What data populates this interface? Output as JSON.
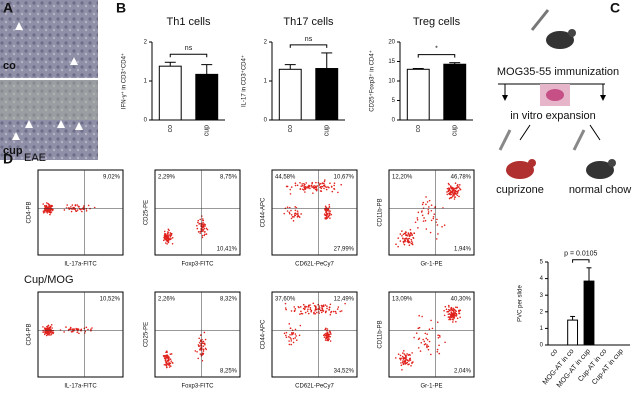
{
  "panel_labels": [
    "A",
    "B",
    "C",
    "D"
  ],
  "panel_a": {
    "labels": [
      "co",
      "cup"
    ]
  },
  "chart_data": [
    {
      "type": "bar",
      "title": "Th1 cells",
      "y_label": "IFN-γ⁺ in CD3⁺CD4⁺",
      "categories": [
        "co",
        "cup"
      ],
      "values": [
        1.38,
        1.17
      ],
      "errors": [
        0.1,
        0.25
      ],
      "colors": [
        "#ffffff",
        "#000000"
      ],
      "ylim": [
        0,
        2
      ],
      "yticks": [
        0,
        1,
        2
      ],
      "annotation": "ns"
    },
    {
      "type": "bar",
      "title": "Th17 cells",
      "y_label": "IL-17 in CD3⁺CD4⁺",
      "categories": [
        "co",
        "cup"
      ],
      "values": [
        1.3,
        1.32
      ],
      "errors": [
        0.12,
        0.4
      ],
      "colors": [
        "#ffffff",
        "#000000"
      ],
      "ylim": [
        0,
        2
      ],
      "yticks": [
        0,
        1,
        2
      ],
      "annotation": "ns"
    },
    {
      "type": "bar",
      "title": "Treg cells",
      "y_label": "CD25⁺Foxp3⁺ in CD4⁺",
      "categories": [
        "co",
        "cup"
      ],
      "values": [
        13,
        14.3
      ],
      "errors": [
        0.2,
        0.4
      ],
      "colors": [
        "#ffffff",
        "#000000"
      ],
      "ylim": [
        0,
        20
      ],
      "yticks": [
        0,
        5,
        10,
        15,
        20
      ],
      "annotation": "*"
    },
    {
      "type": "bar",
      "y_label": "PVC per slide",
      "categories": [
        "co",
        "MOG-AT in co",
        "MOG-AT in cup",
        "Cup-AT in co",
        "Cup-AT in cup"
      ],
      "values": [
        0,
        1.5,
        3.85,
        0,
        0
      ],
      "errors": [
        0,
        0.22,
        0.8,
        0,
        0
      ],
      "colors": [
        "#ffffff",
        "#ffffff",
        "#000000",
        "#ffffff",
        "#ffffff"
      ],
      "ylim": [
        0,
        5
      ],
      "yticks": [
        0,
        1,
        2,
        3,
        4,
        5
      ],
      "annotation": "p = 0.0105"
    }
  ],
  "panel_c": {
    "steps": [
      "MOG35-55 immunization",
      "in vitro expansion",
      "cuprizone",
      "normal chow"
    ]
  },
  "panel_d": {
    "rows": [
      {
        "label": "EAE",
        "plots": [
          {
            "x_label": "IL-17a-FITC",
            "y_label": "CD4-PB",
            "quadrants": {
              "ur": "9,02%"
            }
          },
          {
            "x_label": "Foxp3-FITC",
            "y_label": "CD25-PE",
            "quadrants": {
              "ul": "2,29%",
              "ur": "8,75%",
              "lr": "10,41%"
            }
          },
          {
            "x_label": "CD62L-PeCy7",
            "y_label": "CD44-APC",
            "quadrants": {
              "ul": "44,58%",
              "ur": "10,67%",
              "lr": "27,99%"
            }
          },
          {
            "x_label": "Gr-1-PE",
            "y_label": "CD11b-PB",
            "quadrants": {
              "ul": "12,20%",
              "ur": "46,78%",
              "lr": "1,94%"
            }
          }
        ]
      },
      {
        "label": "Cup/MOG",
        "plots": [
          {
            "x_label": "IL-17a-FITC",
            "y_label": "CD4-PB",
            "quadrants": {
              "ur": "10,52%"
            }
          },
          {
            "x_label": "Foxp3-FITC",
            "y_label": "CD25-PE",
            "quadrants": {
              "ul": "2,26%",
              "ur": "8,32%",
              "lr": "8,25%"
            }
          },
          {
            "x_label": "CD62L-PeCy7",
            "y_label": "CD44-APC",
            "quadrants": {
              "ul": "37,60%",
              "ur": "12,49%",
              "lr": "34,52%"
            }
          },
          {
            "x_label": "Gr-1-PE",
            "y_label": "CD11b-PB",
            "quadrants": {
              "ul": "13,09%",
              "ur": "40,30%",
              "lr": "2,04%"
            }
          }
        ]
      }
    ]
  }
}
